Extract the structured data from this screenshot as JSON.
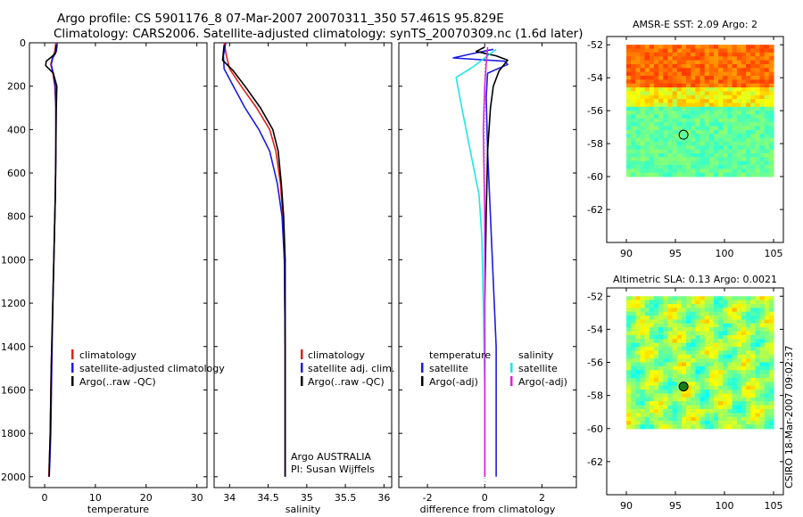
{
  "header": {
    "title_line1": "Argo profile: CS 5901176_8 07-Mar-2007 20070311_350 57.461S 95.829E",
    "title_line2": "Climatology: CARS2006. Satellite-adjusted climatology: synTS_20070309.nc (1.6d later)"
  },
  "depth_ticks": [
    "0",
    "200",
    "400",
    "600",
    "800",
    "1000",
    "1200",
    "1400",
    "1600",
    "1800",
    "2000"
  ],
  "map_ticks": {
    "lat": [
      "-52",
      "-54",
      "-56",
      "-58",
      "-60",
      "-62"
    ],
    "lon": [
      "90",
      "95",
      "100",
      "105"
    ]
  },
  "colors": {
    "climatology": "#e0201a",
    "satellite": "#1c1ce0",
    "argo": "#000000",
    "satellite_salinity_diff": "#22e6e6",
    "argo_salinity_diff": "#e020e0"
  },
  "chart_data": [
    {
      "type": "line",
      "panel": "temperature",
      "xlabel": "temperature",
      "ylabel": "",
      "xlim": [
        -3,
        32
      ],
      "ylim": [
        2050,
        0
      ],
      "xticks": [
        "0",
        "10",
        "20",
        "30"
      ],
      "legend": [
        "climatology",
        "satellite-adjusted climatology",
        "Argo(..raw -QC)"
      ],
      "legend_placement": "lower-right",
      "grid": false,
      "series": [
        {
          "name": "climatology",
          "color": "#e0201a",
          "x": [
            2.2,
            2.0,
            1.5,
            1.2,
            1.6,
            2.0,
            2.2,
            2.2,
            2.1,
            1.9,
            1.6,
            1.3,
            1.1,
            0.9,
            0.8
          ],
          "y": [
            0,
            40,
            70,
            100,
            140,
            200,
            300,
            500,
            700,
            900,
            1200,
            1500,
            1800,
            1950,
            2000
          ]
        },
        {
          "name": "satellite-adjusted climatology",
          "color": "#1c1ce0",
          "x": [
            2.5,
            2.3,
            1.6,
            1.3,
            1.7,
            2.1,
            2.2,
            2.2,
            2.1,
            1.9,
            1.6,
            1.4,
            1.2,
            1.0,
            0.9
          ],
          "y": [
            0,
            40,
            70,
            100,
            140,
            200,
            300,
            500,
            700,
            900,
            1200,
            1500,
            1800,
            1950,
            2000
          ]
        },
        {
          "name": "Argo(..raw -QC)",
          "color": "#000000",
          "x": [
            2.3,
            2.1,
            0.3,
            0.2,
            1.7,
            2.4,
            2.3,
            2.2,
            2.1,
            1.9,
            1.6,
            1.3,
            1.1,
            0.9,
            0.9
          ],
          "y": [
            10,
            50,
            85,
            105,
            140,
            200,
            300,
            500,
            700,
            900,
            1200,
            1500,
            1800,
            1950,
            2000
          ]
        }
      ]
    },
    {
      "type": "line",
      "panel": "salinity",
      "xlabel": "salinity",
      "ylabel": "",
      "xlim": [
        33.8,
        36.1
      ],
      "ylim": [
        2050,
        0
      ],
      "xticks": [
        "34",
        "34.5",
        "35",
        "35.5",
        "36"
      ],
      "legend": [
        "climatology",
        "satellite adj. clim.",
        "Argo(..raw -QC)"
      ],
      "legend_placement": "lower-right",
      "notes": [
        "Argo AUSTRALIA",
        "PI: Susan Wijffels"
      ],
      "grid": false,
      "series": [
        {
          "name": "climatology",
          "color": "#e0201a",
          "x": [
            33.93,
            33.96,
            34.0,
            34.15,
            34.35,
            34.52,
            34.6,
            34.66,
            34.69,
            34.71,
            34.72,
            34.72,
            34.72
          ],
          "y": [
            0,
            60,
            120,
            200,
            300,
            400,
            500,
            650,
            800,
            1000,
            1400,
            1800,
            2000
          ]
        },
        {
          "name": "satellite adj. clim.",
          "color": "#1c1ce0",
          "x": [
            33.95,
            33.92,
            33.93,
            34.05,
            34.2,
            34.38,
            34.52,
            34.62,
            34.68,
            34.71,
            34.72,
            34.72,
            34.72
          ],
          "y": [
            0,
            60,
            120,
            200,
            300,
            400,
            500,
            650,
            800,
            1000,
            1400,
            1800,
            2000
          ]
        },
        {
          "name": "Argo(..raw -QC)",
          "color": "#000000",
          "x": [
            33.93,
            33.91,
            34.05,
            34.2,
            34.4,
            34.56,
            34.63,
            34.67,
            34.7,
            34.72,
            34.72,
            34.72
          ],
          "y": [
            10,
            80,
            130,
            200,
            300,
            400,
            500,
            650,
            800,
            1000,
            1400,
            2000
          ]
        }
      ]
    },
    {
      "type": "line",
      "panel": "difference",
      "xlabel": "difference from climatology",
      "ylabel": "",
      "xlim": [
        -3,
        3.2
      ],
      "ylim": [
        2050,
        0
      ],
      "xticks": [
        "-2",
        "0",
        "2"
      ],
      "legend": [
        "temperature",
        "satellite",
        "Argo(-adj)",
        "salinity",
        "satellite",
        "Argo(-adj)"
      ],
      "legend_placement": "lower-center",
      "grid": false,
      "series": [
        {
          "name": "temperature satellite",
          "color": "#1c1ce0",
          "x": [
            0.3,
            -0.6,
            -1.1,
            0.7,
            0.8,
            0.1,
            0.05,
            0.1,
            0.2,
            0.3,
            0.4,
            0.4,
            0.4
          ],
          "y": [
            30,
            55,
            70,
            85,
            100,
            140,
            250,
            500,
            800,
            1100,
            1400,
            1800,
            2000
          ]
        },
        {
          "name": "temperature Argo(-adj)",
          "color": "#000000",
          "x": [
            0.0,
            -0.3,
            0.4,
            0.8,
            0.5,
            0.3,
            0.2,
            0.1,
            0.05,
            0.0,
            0.0,
            0.0
          ],
          "y": [
            20,
            40,
            60,
            80,
            130,
            200,
            300,
            500,
            800,
            1200,
            1600,
            2000
          ]
        },
        {
          "name": "salinity satellite",
          "color": "#22e6e6",
          "x": [
            0.4,
            0.0,
            -0.4,
            -1.0,
            -0.8,
            -0.5,
            -0.2,
            -0.1,
            -0.05,
            0.0,
            0.0
          ],
          "y": [
            30,
            70,
            110,
            160,
            300,
            500,
            700,
            900,
            1200,
            1600,
            2000
          ]
        },
        {
          "name": "salinity Argo(-adj)",
          "color": "#e020e0",
          "x": [
            0.1,
            0.05,
            0.0,
            -0.05,
            0.0,
            0.0,
            0.0,
            0.0
          ],
          "y": [
            20,
            100,
            200,
            400,
            800,
            1200,
            1600,
            2000
          ]
        }
      ]
    },
    {
      "type": "heatmap",
      "panel": "sst_map",
      "title": "AMSR-E SST: 2.09 Argo: 2",
      "xlim": [
        88,
        106
      ],
      "ylim": [
        -64,
        -51.5
      ],
      "xticks": [
        "90",
        "95",
        "100",
        "105"
      ],
      "yticks": [
        "-52",
        "-54",
        "-56",
        "-58",
        "-60",
        "-62"
      ],
      "data_extent": {
        "lon": [
          90,
          105
        ],
        "lat": [
          -60,
          -52
        ]
      },
      "argo_position": {
        "lon": 95.829,
        "lat": -57.461
      }
    },
    {
      "type": "heatmap",
      "panel": "sla_map",
      "title": "Altimetric SLA: 0.13 Argo: 0.0021",
      "xlim": [
        88,
        106
      ],
      "ylim": [
        -64,
        -51.5
      ],
      "xticks": [
        "90",
        "95",
        "100",
        "105"
      ],
      "yticks": [
        "-52",
        "-54",
        "-56",
        "-58",
        "-60",
        "-62"
      ],
      "data_extent": {
        "lon": [
          90,
          105
        ],
        "lat": [
          -60,
          -52
        ]
      },
      "argo_position": {
        "lon": 95.829,
        "lat": -57.461
      }
    }
  ],
  "stamp": "CSIRO 18-Mar-2007 09:02:37"
}
